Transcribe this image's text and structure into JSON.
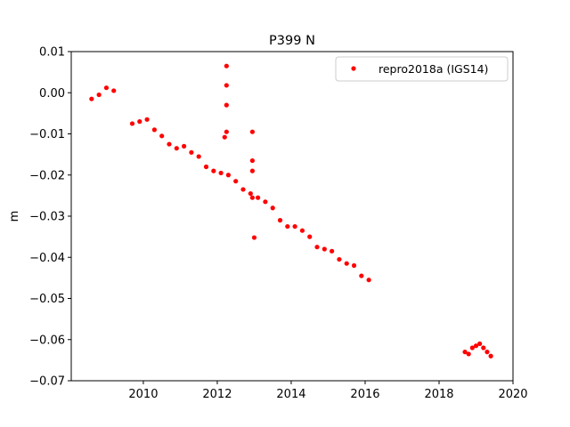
{
  "chart_data": {
    "type": "scatter",
    "title": "P399 N",
    "xlabel": "",
    "ylabel": "m",
    "xlim": [
      2008.05,
      2020.0
    ],
    "ylim": [
      -0.07,
      0.01
    ],
    "xticks": [
      2010,
      2012,
      2014,
      2016,
      2018,
      2020
    ],
    "yticks": [
      0.01,
      0.0,
      -0.01,
      -0.02,
      -0.03,
      -0.04,
      -0.05,
      -0.06,
      -0.07
    ],
    "xtick_labels": [
      "2010",
      "2012",
      "2014",
      "2016",
      "2018",
      "2020"
    ],
    "ytick_labels": [
      "0.01",
      "0.00",
      "−0.01",
      "−0.02",
      "−0.03",
      "−0.04",
      "−0.05",
      "−0.06",
      "−0.07"
    ],
    "grid": false,
    "legend_position": "top-right",
    "series": [
      {
        "name": "repro2018a (IGS14)",
        "color": "#ff0000",
        "marker": "dot",
        "x": [
          2008.6,
          2008.8,
          2009.0,
          2009.2,
          2009.5,
          2009.7,
          2009.9,
          2010.1,
          2010.3,
          2010.5,
          2010.7,
          2010.9,
          2011.1,
          2011.3,
          2011.5,
          2011.7,
          2011.9,
          2012.1,
          2012.3,
          2012.5,
          2012.7,
          2012.9,
          2013.1,
          2013.3,
          2013.5,
          2013.7,
          2013.9,
          2014.1,
          2014.3,
          2014.5,
          2014.7,
          2014.9,
          2015.1,
          2015.3,
          2015.5,
          2015.7,
          2015.9,
          2016.1,
          2018.7,
          2018.8,
          2018.9,
          2019.0,
          2019.1,
          2019.2,
          2019.3,
          2019.4,
          2012.25,
          2012.25,
          2012.25,
          2012.25,
          2012.2,
          2012.95,
          2012.95,
          2012.95,
          2012.95,
          2013.0
        ],
        "y": [
          -0.0015,
          -0.0005,
          0.0012,
          0.0005,
          null,
          -0.0075,
          -0.007,
          -0.0065,
          -0.009,
          -0.0105,
          -0.0125,
          -0.0135,
          -0.013,
          -0.0145,
          -0.0155,
          -0.018,
          -0.019,
          -0.0195,
          -0.02,
          -0.0215,
          -0.0235,
          -0.0245,
          -0.0255,
          -0.0265,
          -0.028,
          -0.031,
          -0.0325,
          -0.0325,
          -0.0335,
          -0.035,
          -0.0375,
          -0.038,
          -0.0385,
          -0.0405,
          -0.0415,
          -0.042,
          -0.0445,
          -0.0455,
          -0.063,
          -0.0635,
          -0.062,
          -0.0615,
          -0.061,
          -0.062,
          -0.063,
          -0.064,
          0.0065,
          0.0018,
          -0.003,
          -0.0095,
          -0.0108,
          -0.0095,
          -0.0165,
          -0.019,
          -0.0255,
          -0.0352
        ]
      }
    ]
  }
}
